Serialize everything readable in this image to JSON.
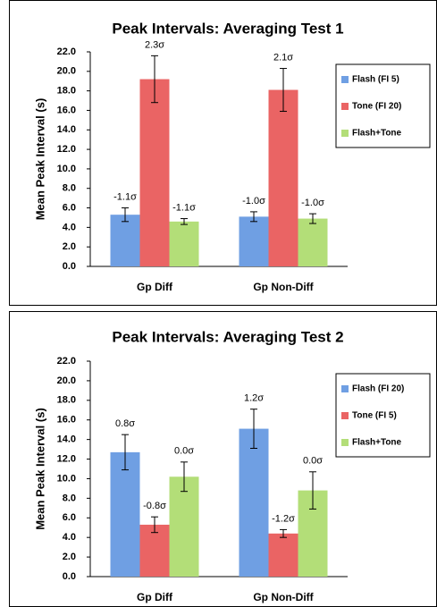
{
  "chart_data": [
    {
      "type": "bar",
      "title": "Peak Intervals: Averaging Test 1",
      "y_label": "Mean Peak Interval (s)",
      "categories": [
        "Gp Diff",
        "Gp Non-Diff"
      ],
      "series": [
        {
          "name": "Flash (FI 5)",
          "color": "#6f9fe3",
          "values": [
            5.3,
            5.1
          ],
          "errors": [
            0.7,
            0.5
          ],
          "annotations": [
            "-1.1σ",
            "-1.0σ"
          ]
        },
        {
          "name": "Tone (FI 20)",
          "color": "#ea6464",
          "values": [
            19.2,
            18.1
          ],
          "errors": [
            2.4,
            2.2
          ],
          "annotations": [
            "2.3σ",
            "2.1σ"
          ]
        },
        {
          "name": "Flash+Tone",
          "color": "#b3de78",
          "values": [
            4.6,
            4.9
          ],
          "errors": [
            0.3,
            0.5
          ],
          "annotations": [
            "-1.1σ",
            "-1.0σ"
          ]
        }
      ],
      "ylim": [
        0,
        22
      ],
      "yticks": [
        {
          "value": 0,
          "label": "0.0"
        },
        {
          "value": 2,
          "label": "2.0"
        },
        {
          "value": 4,
          "label": "4.0"
        },
        {
          "value": 6,
          "label": "6.0"
        },
        {
          "value": 8,
          "label": "8.0"
        },
        {
          "value": 10,
          "label": "10.0"
        },
        {
          "value": 12,
          "label": "12.0"
        },
        {
          "value": 14,
          "label": "14.0"
        },
        {
          "value": 16,
          "label": "16.0"
        },
        {
          "value": 18,
          "label": "18.0"
        },
        {
          "value": 20,
          "label": "20.0"
        },
        {
          "value": 22,
          "label": "22.0"
        }
      ],
      "legend": "right"
    },
    {
      "type": "bar",
      "title": "Peak Intervals: Averaging Test 2",
      "y_label": "Mean Peak Interval (s)",
      "categories": [
        "Gp Diff",
        "Gp Non-Diff"
      ],
      "series": [
        {
          "name": "Flash (FI 20)",
          "color": "#6f9fe3",
          "values": [
            12.7,
            15.1
          ],
          "errors": [
            1.8,
            2.0
          ],
          "annotations": [
            "0.8σ",
            "1.2σ"
          ]
        },
        {
          "name": "Tone (FI 5)",
          "color": "#ea6464",
          "values": [
            5.3,
            4.4
          ],
          "errors": [
            0.8,
            0.4
          ],
          "annotations": [
            "-0.8σ",
            "-1.2σ"
          ]
        },
        {
          "name": "Flash+Tone",
          "color": "#b3de78",
          "values": [
            10.2,
            8.8
          ],
          "errors": [
            1.5,
            1.9
          ],
          "annotations": [
            "0.0σ",
            "0.0σ"
          ]
        }
      ],
      "ylim": [
        0,
        22
      ],
      "yticks": [
        {
          "value": 0,
          "label": "0.0"
        },
        {
          "value": 2,
          "label": "2.0"
        },
        {
          "value": 4,
          "label": "4.0"
        },
        {
          "value": 6,
          "label": "6.0"
        },
        {
          "value": 8,
          "label": "8.0"
        },
        {
          "value": 10,
          "label": "10.0"
        },
        {
          "value": 12,
          "label": "12.0"
        },
        {
          "value": 14,
          "label": "14.0"
        },
        {
          "value": 16,
          "label": "16.0"
        },
        {
          "value": 18,
          "label": "18.0"
        },
        {
          "value": 20,
          "label": "20.0"
        },
        {
          "value": 22,
          "label": "22.0"
        }
      ],
      "legend": "right"
    }
  ]
}
